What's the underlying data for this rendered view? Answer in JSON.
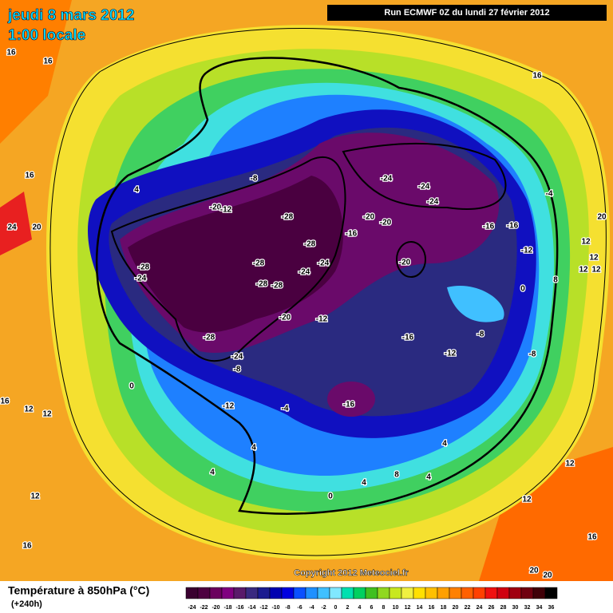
{
  "header": {
    "date": "jeudi 8 mars 2012",
    "time": "1:00 locale",
    "run": "Run ECMWF 0Z du lundi 27 février 2012"
  },
  "map": {
    "contour_labels": [
      16,
      16,
      16,
      16,
      24,
      20,
      4,
      -8,
      -20,
      -12,
      -28,
      -28,
      -24,
      -24,
      -28,
      -28,
      -28,
      -28,
      -24,
      -24,
      -24,
      -24,
      -20,
      -20,
      -16,
      -16,
      -16,
      -4,
      20,
      12,
      12,
      12,
      12,
      -12,
      -20,
      8,
      0,
      -20,
      -12,
      -16,
      -8,
      -12,
      -8,
      -28,
      -24,
      -8,
      0,
      12,
      12,
      -12,
      -4,
      -16,
      4,
      4,
      4,
      8,
      4,
      0,
      4,
      12,
      12,
      12,
      16,
      16,
      20,
      20,
      16
    ],
    "copyright": "Copyright 2012 Meteociel.fr"
  },
  "footer": {
    "title": "Température à 850hPa (°C)",
    "lead": "(+240h)",
    "scale": [
      -24,
      -22,
      -20,
      -18,
      -16,
      -14,
      -12,
      -10,
      -8,
      -6,
      -4,
      -2,
      0,
      2,
      4,
      6,
      8,
      10,
      12,
      14,
      16,
      18,
      20,
      22,
      24,
      26,
      28,
      30,
      32,
      34,
      36
    ]
  }
}
